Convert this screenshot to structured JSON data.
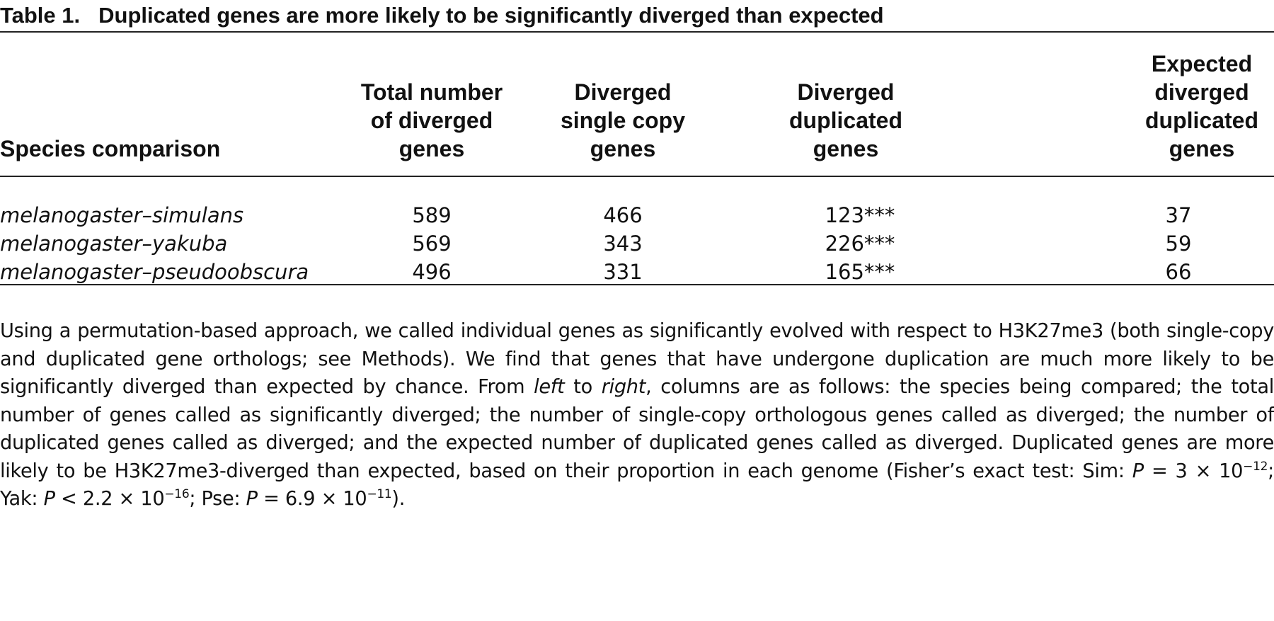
{
  "title": {
    "number": "Table 1.",
    "text": "Duplicated genes are more likely to be significantly diverged than expected"
  },
  "table": {
    "headers": [
      "Species comparison",
      "Total number of diverged genes",
      "Diverged single copy genes",
      "Diverged duplicated genes",
      "Expected diverged duplicated genes"
    ],
    "rows": [
      [
        "melanogaster–simulans",
        "589",
        "466",
        "123***",
        "37"
      ],
      [
        "melanogaster–yakuba",
        "569",
        "343",
        "226***",
        "59"
      ],
      [
        "melanogaster–pseudoobscura",
        "496",
        "331",
        "165***",
        "66"
      ]
    ]
  },
  "footnote": {
    "p1": "Using a permutation-based approach, we called individual genes as significantly evolved with respect to H3K27me3 (both single-copy and duplicated gene orthologs; see Methods). We find that genes that have undergone duplication are much more likely to be significantly diverged than expected by chance. From ",
    "left": "left",
    "to": " to ",
    "right": "right",
    "p2": ", columns are as follows: the species being compared; the total number of genes called as significantly diverged; the number of single-copy orthologous genes called as diverged; the number of duplicated genes called as diverged; and the expected number of duplicated genes called as diverged. Duplicated genes are more likely to be H3K27me3-diverged than expected, based on their proportion in each genome (Fisher’s exact test: Sim: ",
    "P": "P",
    "sim_val": " = 3 × 10",
    "sim_exp": "−12",
    "yak_lbl": "; Yak: ",
    "yak_val": " < 2.2 × 10",
    "yak_exp": "−16",
    "pse_lbl": "; Pse: ",
    "pse_val": " = 6.9 × 10",
    "pse_exp": "−11",
    "end": ")."
  }
}
